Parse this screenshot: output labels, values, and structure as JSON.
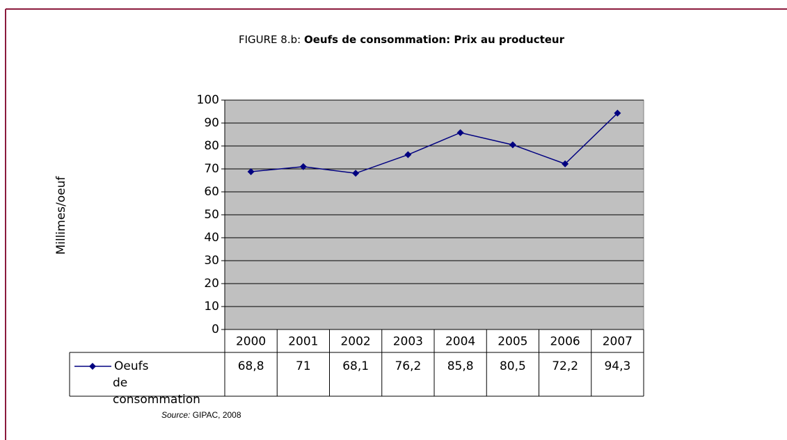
{
  "chart_data": {
    "type": "line",
    "figure_label": "FIGURE 8.b:",
    "title": "Oeufs de consommation: Prix au producteur",
    "y_label": "Millimes/oeuf",
    "categories": [
      "2000",
      "2001",
      "2002",
      "2003",
      "2004",
      "2005",
      "2006",
      "2007"
    ],
    "series": [
      {
        "name": "Oeufs de consommation",
        "color": "#000080",
        "values": [
          68.8,
          71,
          68.1,
          76.2,
          85.8,
          80.5,
          72.2,
          94.3
        ],
        "value_labels": [
          "68,8",
          "71",
          "68,1",
          "76,2",
          "85,8",
          "80,5",
          "72,2",
          "94,3"
        ]
      }
    ],
    "ylim": [
      0,
      100
    ],
    "yticks": [
      0,
      10,
      20,
      30,
      40,
      50,
      60,
      70,
      80,
      90,
      100
    ],
    "grid": true,
    "plot_background": "#c0c0c0",
    "source_label": "Source:",
    "source": "GIPAC, 2008"
  }
}
